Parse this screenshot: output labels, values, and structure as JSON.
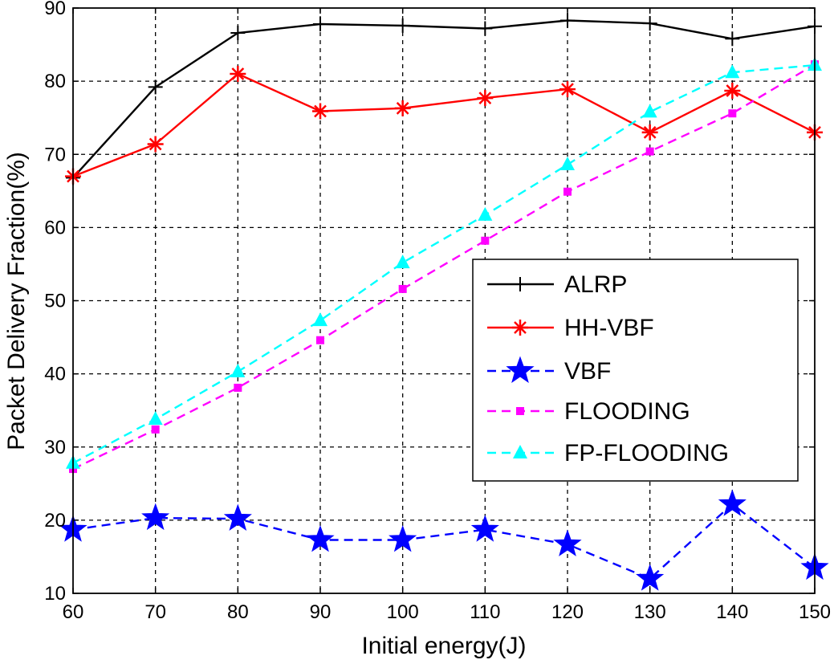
{
  "chart_data": {
    "type": "line",
    "title": "",
    "xlabel": "Initial energy(J)",
    "ylabel": "Packet Delivery Fraction(%)",
    "xlim": [
      60,
      150
    ],
    "ylim": [
      10,
      90
    ],
    "grid": true,
    "legend_position": "center-right",
    "x": [
      60,
      70,
      80,
      90,
      100,
      110,
      120,
      130,
      140,
      150
    ],
    "x_ticks": [
      "60",
      "70",
      "80",
      "90",
      "100",
      "110",
      "120",
      "130",
      "140",
      "150"
    ],
    "y_ticks": [
      "10",
      "20",
      "30",
      "40",
      "50",
      "60",
      "70",
      "80",
      "90"
    ],
    "series": [
      {
        "name": "ALRP",
        "color": "#000000",
        "dash": "solid",
        "marker": "plus",
        "values": [
          66.8,
          79.2,
          86.6,
          87.8,
          87.6,
          87.2,
          88.3,
          87.9,
          85.8,
          87.5
        ]
      },
      {
        "name": "HH-VBF",
        "color": "#ff0000",
        "dash": "solid",
        "marker": "asterisk",
        "values": [
          67.0,
          71.4,
          81.0,
          75.9,
          76.3,
          77.7,
          78.9,
          73.0,
          78.7,
          73.0
        ]
      },
      {
        "name": "VBF",
        "color": "#0000ff",
        "dash": "dashed",
        "marker": "star",
        "values": [
          18.7,
          20.3,
          20.2,
          17.3,
          17.3,
          18.7,
          16.7,
          12.0,
          22.2,
          13.5
        ]
      },
      {
        "name": "FLOODING",
        "color": "#ff00ff",
        "dash": "dashed",
        "marker": "square",
        "values": [
          27.0,
          32.4,
          38.1,
          44.6,
          51.6,
          58.2,
          64.9,
          70.4,
          75.6,
          82.3
        ]
      },
      {
        "name": "FP-FLOODING",
        "color": "#00ffff",
        "dash": "dashed",
        "marker": "triangle",
        "values": [
          27.8,
          33.8,
          40.3,
          47.3,
          55.2,
          61.7,
          68.6,
          75.8,
          81.2,
          82.2
        ]
      }
    ]
  }
}
